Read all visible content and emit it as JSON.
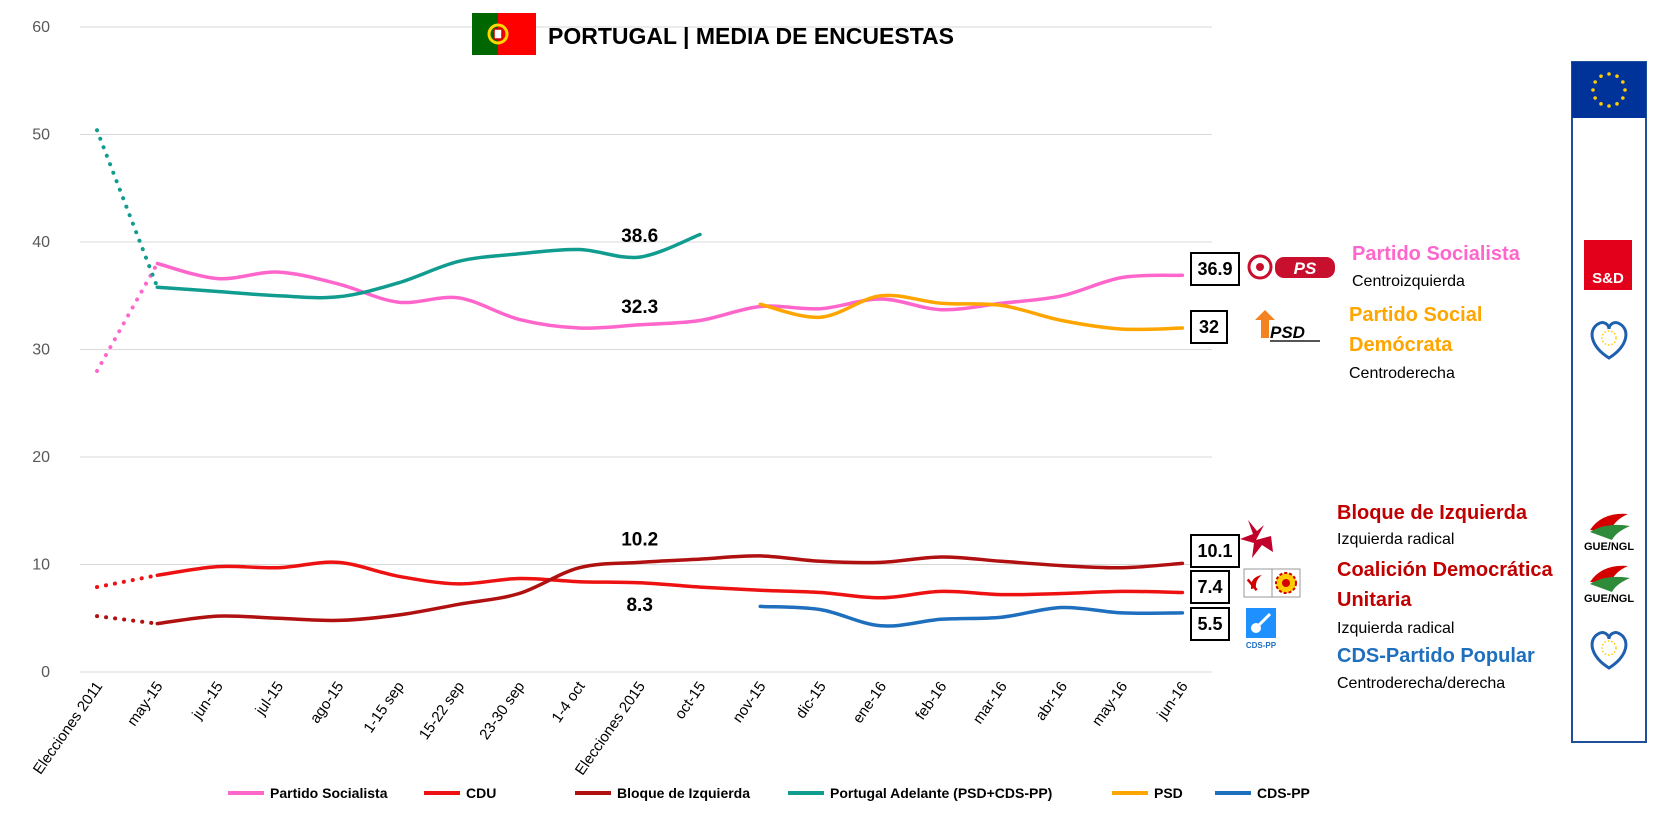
{
  "header": {
    "title": "PORTUGAL | MEDIA DE ENCUESTAS",
    "flag_icon": "portugal-flag-icon"
  },
  "colors": {
    "ps": "#FF66CC",
    "cdu": "#EE1111",
    "be": "#B01010",
    "pa": "#119C90",
    "psd": "#FFA500",
    "cds": "#1F6FBF",
    "grid": "#D9D9D9",
    "eu_blue": "#003399",
    "sd_red": "#E2001A"
  },
  "chart_data": {
    "type": "line",
    "title": "PORTUGAL | MEDIA DE ENCUESTAS",
    "ylim": [
      0,
      60
    ],
    "yticks": [
      "0",
      "10",
      "20",
      "30",
      "40",
      "50",
      "60"
    ],
    "grid": true,
    "legend_position": "bottom",
    "categories": [
      "Elecciones 2011",
      "may-15",
      "jun-15",
      "jul-15",
      "ago-15",
      "1-15 sep",
      "15-22 sep",
      "23-30 sep",
      "1-4 oct",
      "Elecciones 2015",
      "oct-15",
      "nov-15",
      "dic-15",
      "ene-16",
      "feb-16",
      "mar-16",
      "abr-16",
      "may-16",
      "jun-16"
    ],
    "series": [
      {
        "name": "Partido Socialista",
        "key": "ps",
        "values": [
          28.0,
          38.0,
          36.6,
          37.2,
          36.1,
          34.4,
          34.8,
          32.8,
          32.0,
          32.3,
          32.7,
          34.0,
          33.8,
          34.7,
          33.7,
          34.3,
          35.0,
          36.7,
          36.9
        ]
      },
      {
        "name": "CDU",
        "key": "cdu",
        "values": [
          7.9,
          9.0,
          9.8,
          9.7,
          10.2,
          8.9,
          8.2,
          8.7,
          8.4,
          8.3,
          7.9,
          7.6,
          7.4,
          6.9,
          7.5,
          7.2,
          7.3,
          7.5,
          7.4
        ]
      },
      {
        "name": "Bloque de Izquierda",
        "key": "be",
        "values": [
          5.2,
          4.5,
          5.2,
          5.0,
          4.8,
          5.3,
          6.3,
          7.3,
          9.7,
          10.2,
          10.5,
          10.8,
          10.3,
          10.2,
          10.7,
          10.3,
          9.9,
          9.7,
          10.1
        ]
      },
      {
        "name": "Portugal Adelante (PSD+CDS-PP)",
        "key": "pa",
        "values": [
          50.4,
          35.8,
          35.4,
          35.0,
          34.9,
          36.2,
          38.2,
          38.9,
          39.3,
          38.6,
          40.7,
          null,
          null,
          null,
          null,
          null,
          null,
          null,
          null
        ]
      },
      {
        "name": "PSD",
        "key": "psd",
        "values": [
          null,
          null,
          null,
          null,
          null,
          null,
          null,
          null,
          null,
          null,
          null,
          34.2,
          33.0,
          35.0,
          34.3,
          34.1,
          32.7,
          31.9,
          32.0
        ]
      },
      {
        "name": "CDS-PP",
        "key": "cds",
        "values": [
          null,
          null,
          null,
          null,
          null,
          null,
          null,
          null,
          null,
          null,
          null,
          6.1,
          5.8,
          4.3,
          4.9,
          5.1,
          6.0,
          5.5,
          5.5
        ]
      }
    ],
    "annotations": [
      {
        "text": "38.6",
        "category": "Elecciones 2015",
        "y": 38.6
      },
      {
        "text": "32.3",
        "category": "Elecciones 2015",
        "y": 32.3
      },
      {
        "text": "10.2",
        "category": "Elecciones 2015",
        "y": 10.2
      },
      {
        "text": "8.3",
        "category": "Elecciones 2015",
        "y": 8.3
      }
    ],
    "end_labels": [
      {
        "text": "36.9",
        "key": "ps"
      },
      {
        "text": "32",
        "key": "psd"
      },
      {
        "text": "10.1",
        "key": "be"
      },
      {
        "text": "7.4",
        "key": "cdu"
      },
      {
        "text": "5.5",
        "key": "cds"
      }
    ]
  },
  "parties": [
    {
      "key": "ps",
      "name": "Partido Socialista",
      "ideology": "Centroizquierda",
      "logo": "ps-logo-icon"
    },
    {
      "key": "psd",
      "name_line1": "Partido Social",
      "name_line2": "Demócrata",
      "ideology": "Centroderecha",
      "logo": "psd-logo-icon",
      "logo_text": "PSD"
    },
    {
      "key": "be",
      "name": "Bloque de Izquierda",
      "ideology": "Izquierda radical",
      "logo": "be-star-icon"
    },
    {
      "key": "cdu",
      "name_line1": "Coalición Democrática",
      "name_line2": "Unitaria",
      "ideology": "Izquierda radical",
      "logo": "cdu-hammer-sickle-icon"
    },
    {
      "key": "cds",
      "name": "CDS-Partido Popular",
      "ideology": "Centroderecha/derecha",
      "logo": "cds-logo-icon",
      "logo_text": "CDS-PP"
    }
  ],
  "eu_groups": {
    "panel_icon": "eu-flag-icon",
    "sd_label": "S&D",
    "gue_label_1": "GUE/NGL",
    "gue_label_2": "GUE/NGL",
    "epp_icon": "epp-heart-icon"
  },
  "ps_logo_text": "PS"
}
